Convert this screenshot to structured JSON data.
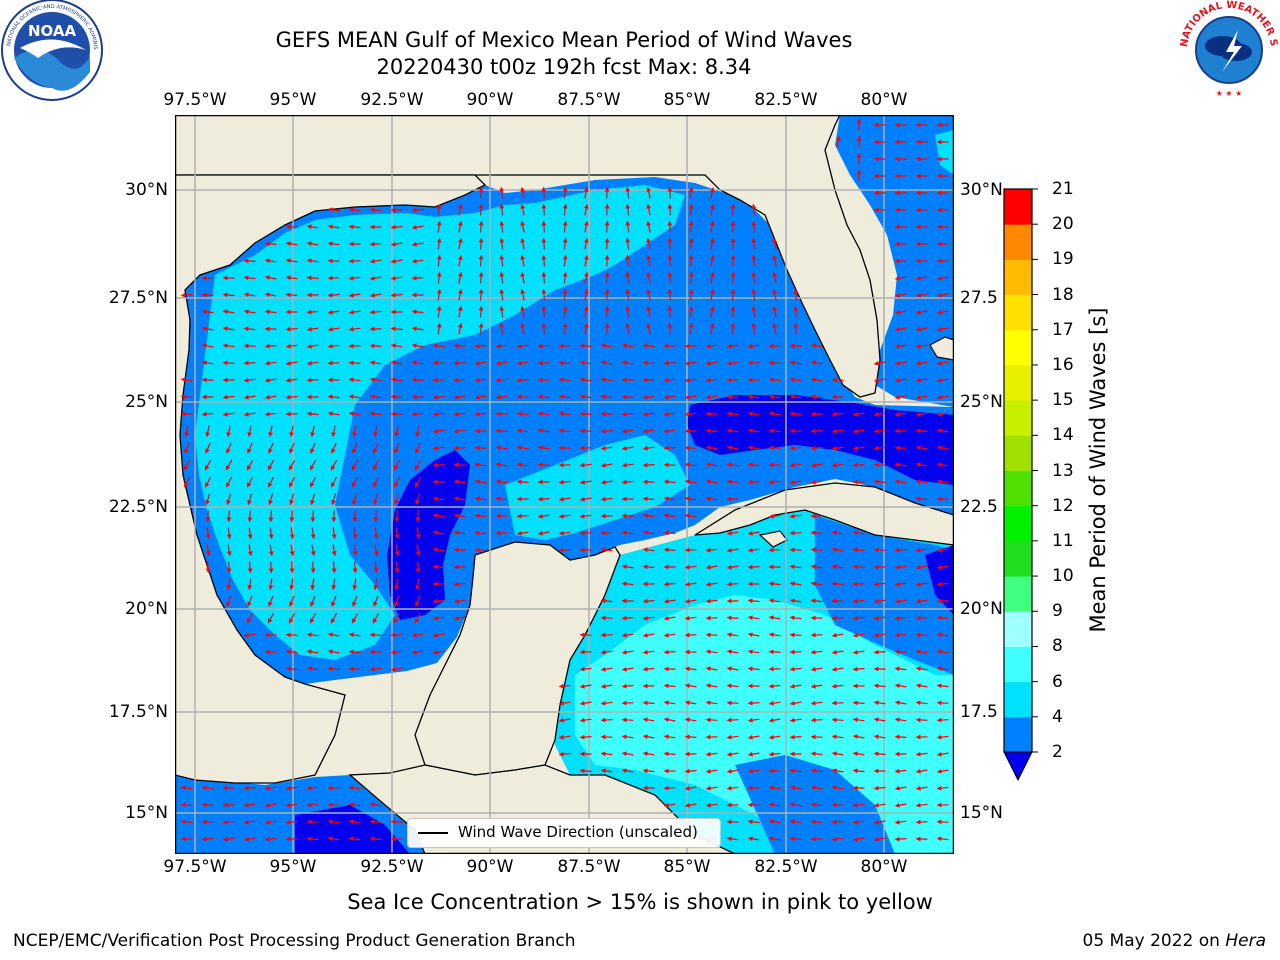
{
  "title": {
    "line1": "GEFS MEAN Gulf of Mexico Mean Period of Wind Waves",
    "line2": "20220430 t00z 192h fcst   Max: 8.34"
  },
  "logos": {
    "left": {
      "name": "noaa-logo",
      "text": "NOAA",
      "ring_text": "NATIONAL OCEANIC AND ATMOSPHERIC ADMINISTRATION · U.S. DEPARTMENT OF COMMERCE"
    },
    "right": {
      "name": "national-weather-service-logo",
      "ring_text": "NATIONAL WEATHER SERVICE"
    }
  },
  "map": {
    "lon_labels": [
      "97.5°W",
      "95°W",
      "92.5°W",
      "90°W",
      "87.5°W",
      "85°W",
      "82.5°W",
      "80°W"
    ],
    "lat_labels_left": [
      "30°N",
      "27.5°N",
      "25°N",
      "22.5°N",
      "20°N",
      "17.5°N",
      "15°N"
    ],
    "lat_labels_right": [
      "30°N",
      "27.5",
      "25°N",
      "22.5",
      "20°N",
      "17.5",
      "15°N"
    ],
    "extent": {
      "lon_min": -98.0,
      "lon_max": -78.2,
      "lat_min": 14.0,
      "lat_max": 31.8
    },
    "land_color": "#efecdc",
    "grid_color": "#b0b0b0",
    "arrow_color": "#ff0000"
  },
  "legend": {
    "label": "Wind Wave Direction (unscaled)"
  },
  "colorbar": {
    "title": "Mean Period of Wind Waves [s]",
    "ticks": [
      "2",
      "4",
      "6",
      "8",
      "9",
      "10",
      "11",
      "12",
      "13",
      "14",
      "15",
      "16",
      "17",
      "18",
      "19",
      "20",
      "21"
    ],
    "colors": [
      "#0000ee",
      "#0080ff",
      "#00e0ff",
      "#40ffff",
      "#a0ffff",
      "#40ff80",
      "#20dd20",
      "#00f000",
      "#50e000",
      "#a0e000",
      "#c8ee00",
      "#e8f000",
      "#ffff00",
      "#ffe000",
      "#ffbb00",
      "#ff8800",
      "#ff5000",
      "#ff2000",
      "#ff0000"
    ],
    "under_color": "#0000ee"
  },
  "note": "Sea Ice Concentration > 15% is shown in pink to yellow",
  "footer": {
    "left": "NCEP/EMC/Verification Post Processing Product Generation Branch",
    "right_date": "05 May 2022 on ",
    "right_host": "Hera"
  }
}
